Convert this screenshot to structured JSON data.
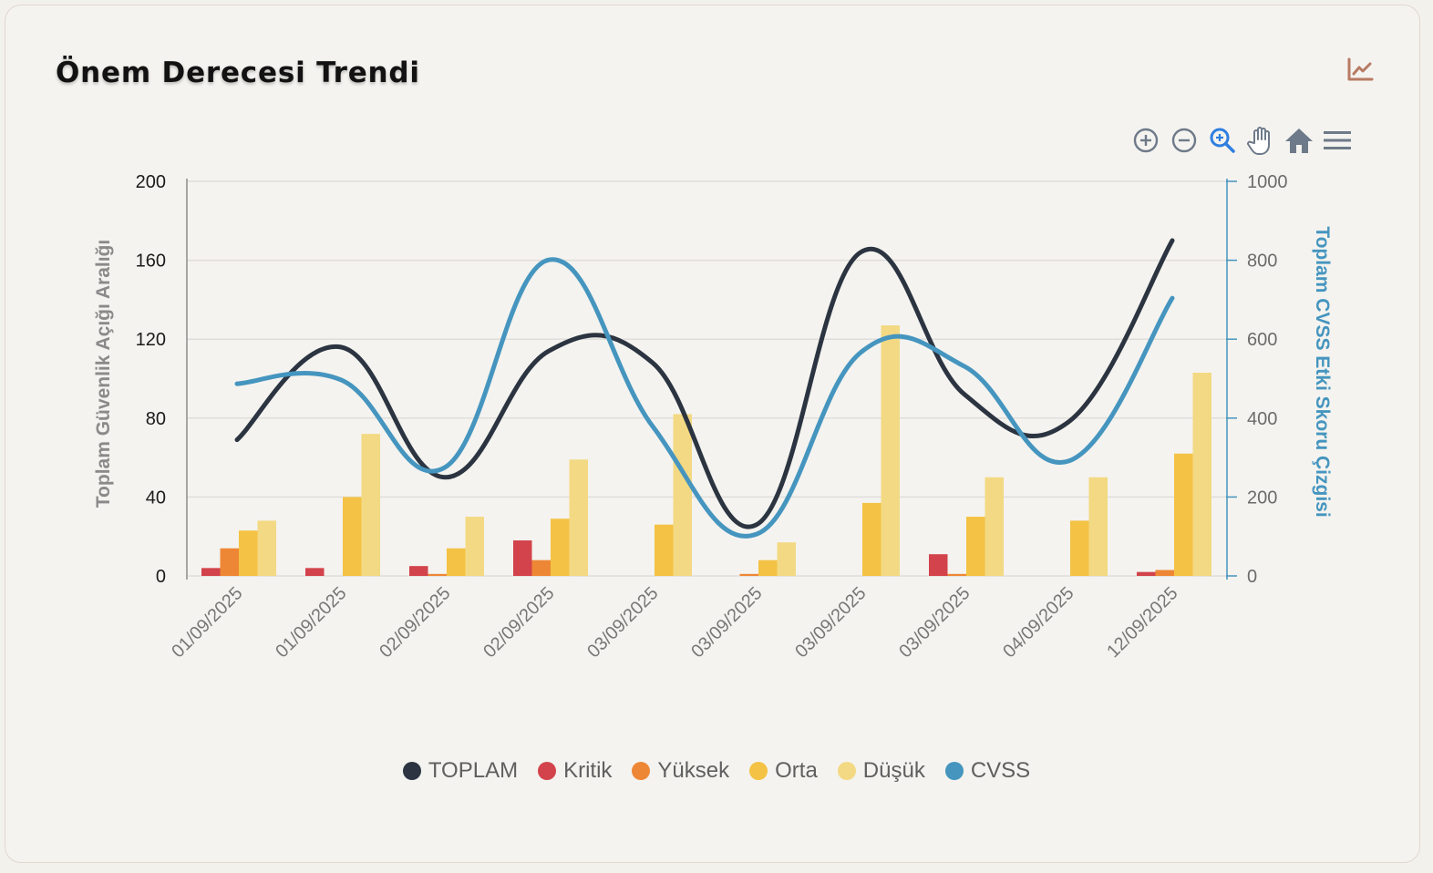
{
  "card": {
    "title": "Önem Derecesi Trendi",
    "chart_type_icon": "line-chart-icon"
  },
  "toolbar": {
    "items": [
      {
        "name": "zoom-in-button",
        "icon": "plus-circle-icon"
      },
      {
        "name": "zoom-out-button",
        "icon": "minus-circle-icon"
      },
      {
        "name": "selection-zoom-button",
        "icon": "magnifier-plus-icon",
        "active": true
      },
      {
        "name": "pan-button",
        "icon": "hand-icon"
      },
      {
        "name": "reset-zoom-button",
        "icon": "home-icon"
      },
      {
        "name": "menu-button",
        "icon": "hamburger-menu-icon"
      }
    ],
    "active_color": "#2f7fe0",
    "inactive_color": "#6e7a89"
  },
  "chart_data": {
    "type": "bar",
    "title": "Önem Derecesi Trendi",
    "categories": [
      "01/09/2025",
      "01/09/2025",
      "02/09/2025",
      "02/09/2025",
      "03/09/2025",
      "03/09/2025",
      "03/09/2025",
      "03/09/2025",
      "04/09/2025",
      "12/09/2025"
    ],
    "ylabel": "Toplam Güvenlik Açığı Aralığı",
    "y2label": "Toplam CVSS Etki Skoru Çizgisi",
    "ylim": [
      0,
      200
    ],
    "y2lim": [
      0,
      1000
    ],
    "yticks": [
      0,
      40,
      80,
      120,
      160,
      200
    ],
    "y2ticks": [
      0,
      200,
      400,
      600,
      800,
      1000
    ],
    "grid": true,
    "legend_position": "bottom",
    "series": [
      {
        "name": "TOPLAM",
        "type": "line",
        "axis": "left",
        "color": "#2b3440",
        "values": [
          69,
          116,
          50,
          114,
          108,
          26,
          164,
          92,
          78,
          170
        ]
      },
      {
        "name": "Kritik",
        "type": "bar",
        "axis": "left",
        "color": "#d2434b",
        "values": [
          4,
          4,
          5,
          18,
          0,
          0,
          0,
          11,
          0,
          2
        ]
      },
      {
        "name": "Yüksek",
        "type": "bar",
        "axis": "left",
        "color": "#ee8735",
        "values": [
          14,
          0,
          1,
          8,
          0,
          1,
          0,
          1,
          0,
          3
        ]
      },
      {
        "name": "Orta",
        "type": "bar",
        "axis": "left",
        "color": "#f4c244",
        "values": [
          23,
          40,
          14,
          29,
          26,
          8,
          37,
          30,
          28,
          62
        ]
      },
      {
        "name": "Düşük",
        "type": "bar",
        "axis": "left",
        "color": "#f3d983",
        "values": [
          28,
          72,
          30,
          59,
          82,
          17,
          127,
          50,
          50,
          103
        ]
      },
      {
        "name": "CVSS",
        "type": "line",
        "axis": "right",
        "color": "#4595bf",
        "values": [
          487,
          497,
          275,
          801,
          379,
          106,
          566,
          531,
          291,
          704
        ]
      }
    ]
  }
}
